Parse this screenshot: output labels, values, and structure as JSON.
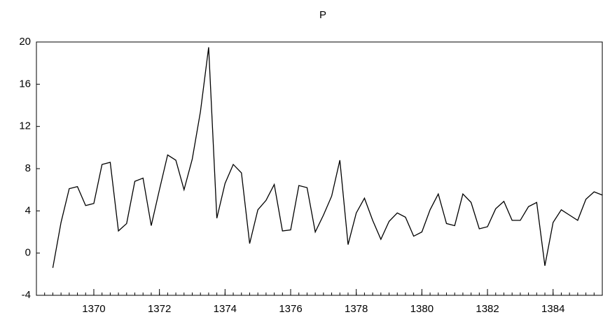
{
  "chart_data": {
    "type": "line",
    "title": "P",
    "x": [
      1368.75,
      1369,
      1369.25,
      1369.5,
      1369.75,
      1370,
      1370.25,
      1370.5,
      1370.75,
      1371,
      1371.25,
      1371.5,
      1371.75,
      1372,
      1372.25,
      1372.5,
      1372.75,
      1373,
      1373.25,
      1373.5,
      1373.75,
      1374,
      1374.25,
      1374.5,
      1374.75,
      1375,
      1375.25,
      1375.5,
      1375.75,
      1376,
      1376.25,
      1376.5,
      1376.75,
      1377,
      1377.25,
      1377.5,
      1377.75,
      1378,
      1378.25,
      1378.5,
      1378.75,
      1379,
      1379.25,
      1379.5,
      1379.75,
      1380,
      1380.25,
      1380.5,
      1380.75,
      1381,
      1381.25,
      1381.5,
      1381.75,
      1382,
      1382.25,
      1382.5,
      1382.75,
      1383,
      1383.25,
      1383.5,
      1383.75,
      1384,
      1384.25,
      1384.5,
      1384.75,
      1385,
      1385.25,
      1385.5
    ],
    "series": [
      {
        "name": "P",
        "color": "#000000",
        "values": [
          -1.4,
          2.9,
          6.1,
          6.3,
          4.5,
          4.7,
          8.4,
          8.6,
          2.1,
          2.8,
          6.8,
          7.1,
          2.6,
          6.0,
          9.3,
          8.8,
          6.0,
          8.9,
          13.4,
          19.5,
          3.3,
          6.6,
          8.4,
          7.6,
          0.9,
          4.1,
          5.0,
          6.5,
          2.1,
          2.2,
          6.4,
          6.2,
          2.0,
          3.6,
          5.4,
          8.8,
          0.8,
          3.8,
          5.2,
          3.1,
          1.3,
          3.0,
          3.8,
          3.4,
          1.6,
          2.0,
          4.1,
          5.6,
          2.8,
          2.6,
          5.6,
          4.8,
          2.3,
          2.5,
          4.2,
          4.9,
          3.1,
          3.1,
          4.4,
          4.8,
          -1.2,
          2.9,
          4.1,
          3.6,
          3.1,
          5.1,
          5.8,
          5.5
        ]
      }
    ],
    "xlim": [
      1368.25,
      1385.5
    ],
    "xticks": [
      1370,
      1372,
      1374,
      1376,
      1378,
      1380,
      1382,
      1384
    ],
    "ylim": [
      -4,
      20
    ],
    "yticks": [
      -4,
      0,
      4,
      8,
      12,
      16,
      20
    ],
    "grid": false
  }
}
